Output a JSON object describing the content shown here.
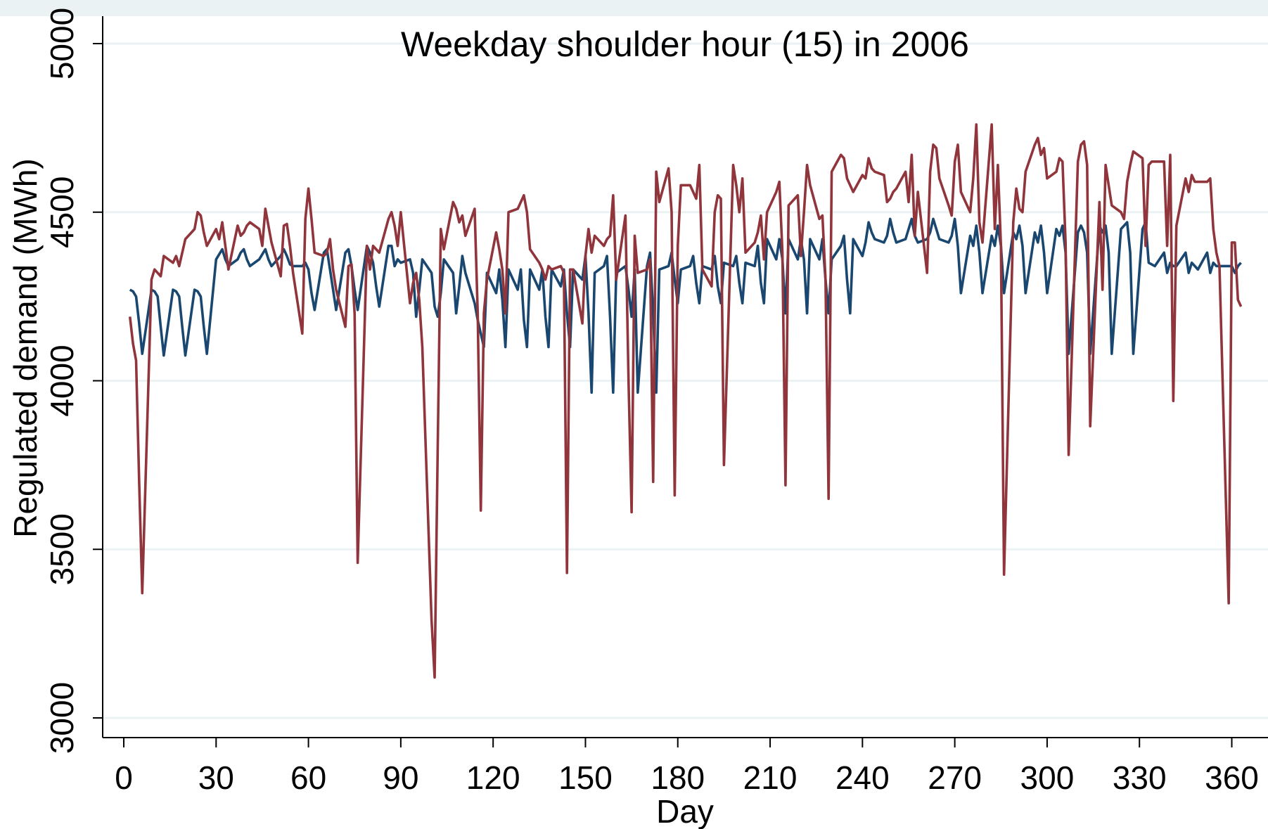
{
  "chart_data": {
    "type": "line",
    "title": "Weekday shoulder hour (15) in 2006",
    "x_label": "Day",
    "y_label": "Regulated demand (MWh)",
    "xlim": [
      0,
      360
    ],
    "xticks": [
      0,
      30,
      60,
      90,
      120,
      150,
      180,
      210,
      240,
      270,
      300,
      330,
      360
    ],
    "ylim": [
      3000,
      5000
    ],
    "yticks": [
      3000,
      3500,
      4000,
      4500,
      5000
    ],
    "grid": true,
    "x": [
      2,
      3,
      4,
      5,
      6,
      9,
      10,
      11,
      12,
      13,
      16,
      17,
      18,
      19,
      20,
      23,
      24,
      25,
      26,
      27,
      30,
      31,
      32,
      33,
      34,
      37,
      38,
      39,
      40,
      41,
      44,
      45,
      46,
      47,
      48,
      51,
      52,
      53,
      54,
      55,
      58,
      59,
      60,
      61,
      62,
      65,
      66,
      67,
      68,
      69,
      72,
      73,
      74,
      75,
      76,
      79,
      80,
      81,
      82,
      83,
      86,
      87,
      88,
      89,
      90,
      93,
      94,
      95,
      96,
      97,
      100,
      101,
      102,
      103,
      104,
      107,
      108,
      109,
      110,
      111,
      114,
      115,
      116,
      117,
      118,
      121,
      122,
      123,
      124,
      125,
      128,
      129,
      130,
      131,
      132,
      135,
      136,
      137,
      138,
      139,
      142,
      143,
      144,
      145,
      146,
      149,
      150,
      151,
      152,
      153,
      156,
      157,
      158,
      159,
      160,
      163,
      164,
      165,
      166,
      167,
      170,
      171,
      172,
      173,
      174,
      177,
      178,
      179,
      180,
      181,
      184,
      185,
      186,
      187,
      188,
      191,
      192,
      193,
      194,
      195,
      198,
      199,
      200,
      201,
      202,
      205,
      206,
      207,
      208,
      209,
      212,
      213,
      214,
      215,
      216,
      219,
      220,
      221,
      222,
      223,
      226,
      227,
      228,
      229,
      230,
      233,
      234,
      235,
      236,
      237,
      240,
      241,
      242,
      243,
      244,
      247,
      248,
      249,
      250,
      251,
      254,
      255,
      256,
      257,
      258,
      261,
      262,
      263,
      264,
      265,
      268,
      269,
      270,
      271,
      272,
      275,
      276,
      277,
      278,
      279,
      282,
      283,
      284,
      285,
      286,
      289,
      290,
      291,
      292,
      293,
      296,
      297,
      298,
      299,
      300,
      303,
      304,
      305,
      306,
      307,
      310,
      311,
      312,
      313,
      314,
      317,
      318,
      319,
      320,
      321,
      324,
      325,
      326,
      327,
      328,
      331,
      332,
      333,
      334,
      335,
      338,
      339,
      340,
      341,
      342,
      345,
      346,
      347,
      348,
      349,
      352,
      353,
      354,
      355,
      356,
      359,
      360,
      361,
      362,
      363
    ],
    "series": [
      {
        "color": "#1a476f",
        "values": [
          4270,
          4265,
          4250,
          4170,
          4080,
          4270,
          4265,
          4250,
          4160,
          4075,
          4270,
          4265,
          4250,
          4160,
          4075,
          4270,
          4265,
          4250,
          4160,
          4080,
          4360,
          4375,
          4390,
          4360,
          4340,
          4360,
          4380,
          4390,
          4360,
          4340,
          4360,
          4375,
          4390,
          4360,
          4340,
          4370,
          4390,
          4370,
          4345,
          4340,
          4340,
          4350,
          4330,
          4260,
          4210,
          4380,
          4390,
          4330,
          4270,
          4210,
          4380,
          4390,
          4340,
          4270,
          4210,
          4400,
          4380,
          4350,
          4280,
          4220,
          4400,
          4400,
          4340,
          4360,
          4350,
          4360,
          4320,
          4190,
          4270,
          4360,
          4320,
          4220,
          4190,
          4260,
          4360,
          4320,
          4200,
          4280,
          4370,
          4320,
          4230,
          4180,
          4140,
          4100,
          4320,
          4260,
          4330,
          4240,
          4100,
          4330,
          4270,
          4330,
          4180,
          4100,
          4330,
          4270,
          4330,
          4190,
          4100,
          4330,
          4280,
          4330,
          4200,
          4100,
          4330,
          4300,
          4370,
          4200,
          3965,
          4320,
          4340,
          4370,
          4190,
          3965,
          4320,
          4340,
          4270,
          4190,
          4330,
          3965,
          4340,
          4380,
          4200,
          3965,
          4330,
          4340,
          4380,
          4300,
          4230,
          4330,
          4340,
          4370,
          4290,
          4230,
          4340,
          4330,
          4370,
          4280,
          4230,
          4350,
          4340,
          4370,
          4290,
          4230,
          4350,
          4340,
          4400,
          4290,
          4230,
          4420,
          4360,
          4420,
          4360,
          4200,
          4420,
          4360,
          4420,
          4360,
          4200,
          4420,
          4360,
          4420,
          4300,
          4200,
          4360,
          4400,
          4430,
          4300,
          4200,
          4420,
          4370,
          4410,
          4470,
          4440,
          4420,
          4410,
          4430,
          4480,
          4440,
          4410,
          4420,
          4450,
          4480,
          4430,
          4410,
          4420,
          4440,
          4480,
          4450,
          4420,
          4410,
          4430,
          4480,
          4400,
          4260,
          4430,
          4400,
          4460,
          4380,
          4260,
          4430,
          4400,
          4460,
          4400,
          4260,
          4440,
          4420,
          4460,
          4400,
          4260,
          4440,
          4410,
          4460,
          4380,
          4260,
          4450,
          4430,
          4460,
          4380,
          4080,
          4440,
          4460,
          4440,
          4380,
          4080,
          4460,
          4440,
          4460,
          4380,
          4080,
          4450,
          4460,
          4470,
          4380,
          4080,
          4450,
          4470,
          4350,
          4345,
          4340,
          4380,
          4320,
          4350,
          4340,
          4340,
          4380,
          4320,
          4350,
          4340,
          4330,
          4380,
          4320,
          4350,
          4340,
          4340,
          4340,
          4340,
          4320,
          4340,
          4350
        ]
      },
      {
        "color": "#90353b",
        "values": [
          4190,
          4110,
          4060,
          3700,
          3370,
          4300,
          4330,
          4320,
          4310,
          4370,
          4350,
          4370,
          4340,
          4380,
          4420,
          4450,
          4500,
          4490,
          4440,
          4400,
          4450,
          4420,
          4470,
          4400,
          4330,
          4460,
          4430,
          4440,
          4460,
          4470,
          4450,
          4400,
          4510,
          4460,
          4410,
          4310,
          4460,
          4465,
          4400,
          4320,
          4140,
          4480,
          4570,
          4480,
          4380,
          4370,
          4380,
          4420,
          4330,
          4270,
          4160,
          4340,
          4345,
          4200,
          3460,
          4400,
          4330,
          4400,
          4390,
          4380,
          4480,
          4500,
          4460,
          4400,
          4500,
          4230,
          4290,
          4320,
          4240,
          4100,
          3290,
          3120,
          3800,
          4450,
          4390,
          4530,
          4510,
          4470,
          4490,
          4430,
          4510,
          4200,
          3615,
          4200,
          4300,
          4440,
          4390,
          4330,
          4200,
          4500,
          4510,
          4530,
          4550,
          4500,
          4390,
          4350,
          4330,
          4300,
          4340,
          4330,
          4340,
          4320,
          3430,
          4330,
          4330,
          4170,
          4370,
          4450,
          4380,
          4430,
          4400,
          4420,
          4430,
          4550,
          4300,
          4490,
          4000,
          3610,
          4430,
          4320,
          4330,
          4360,
          3700,
          4620,
          4530,
          4630,
          4500,
          3660,
          4400,
          4580,
          4580,
          4560,
          4540,
          4640,
          4330,
          4280,
          4500,
          4550,
          4540,
          3750,
          4640,
          4580,
          4500,
          4600,
          4380,
          4410,
          4440,
          4490,
          4360,
          4500,
          4560,
          4590,
          4380,
          3690,
          4520,
          4550,
          4370,
          4500,
          4640,
          4580,
          4480,
          4490,
          4300,
          3650,
          4620,
          4670,
          4660,
          4600,
          4580,
          4560,
          4610,
          4600,
          4660,
          4630,
          4620,
          4610,
          4530,
          4540,
          4560,
          4570,
          4620,
          4530,
          4670,
          4430,
          4560,
          4320,
          4620,
          4700,
          4690,
          4600,
          4520,
          4490,
          4650,
          4700,
          4560,
          4500,
          4600,
          4760,
          4470,
          4410,
          4760,
          4450,
          4640,
          4400,
          3425,
          4470,
          4570,
          4510,
          4500,
          4620,
          4700,
          4720,
          4670,
          4690,
          4600,
          4620,
          4660,
          4650,
          4410,
          3780,
          4650,
          4700,
          4710,
          4640,
          3865,
          4530,
          4270,
          4640,
          4580,
          4520,
          4500,
          4480,
          4590,
          4640,
          4680,
          4660,
          4400,
          4640,
          4650,
          4650,
          4650,
          4400,
          4670,
          3940,
          4460,
          4600,
          4560,
          4610,
          4590,
          4590,
          4590,
          4600,
          4450,
          4380,
          4340,
          3340,
          4410,
          4410,
          4240,
          4220
        ]
      }
    ]
  }
}
